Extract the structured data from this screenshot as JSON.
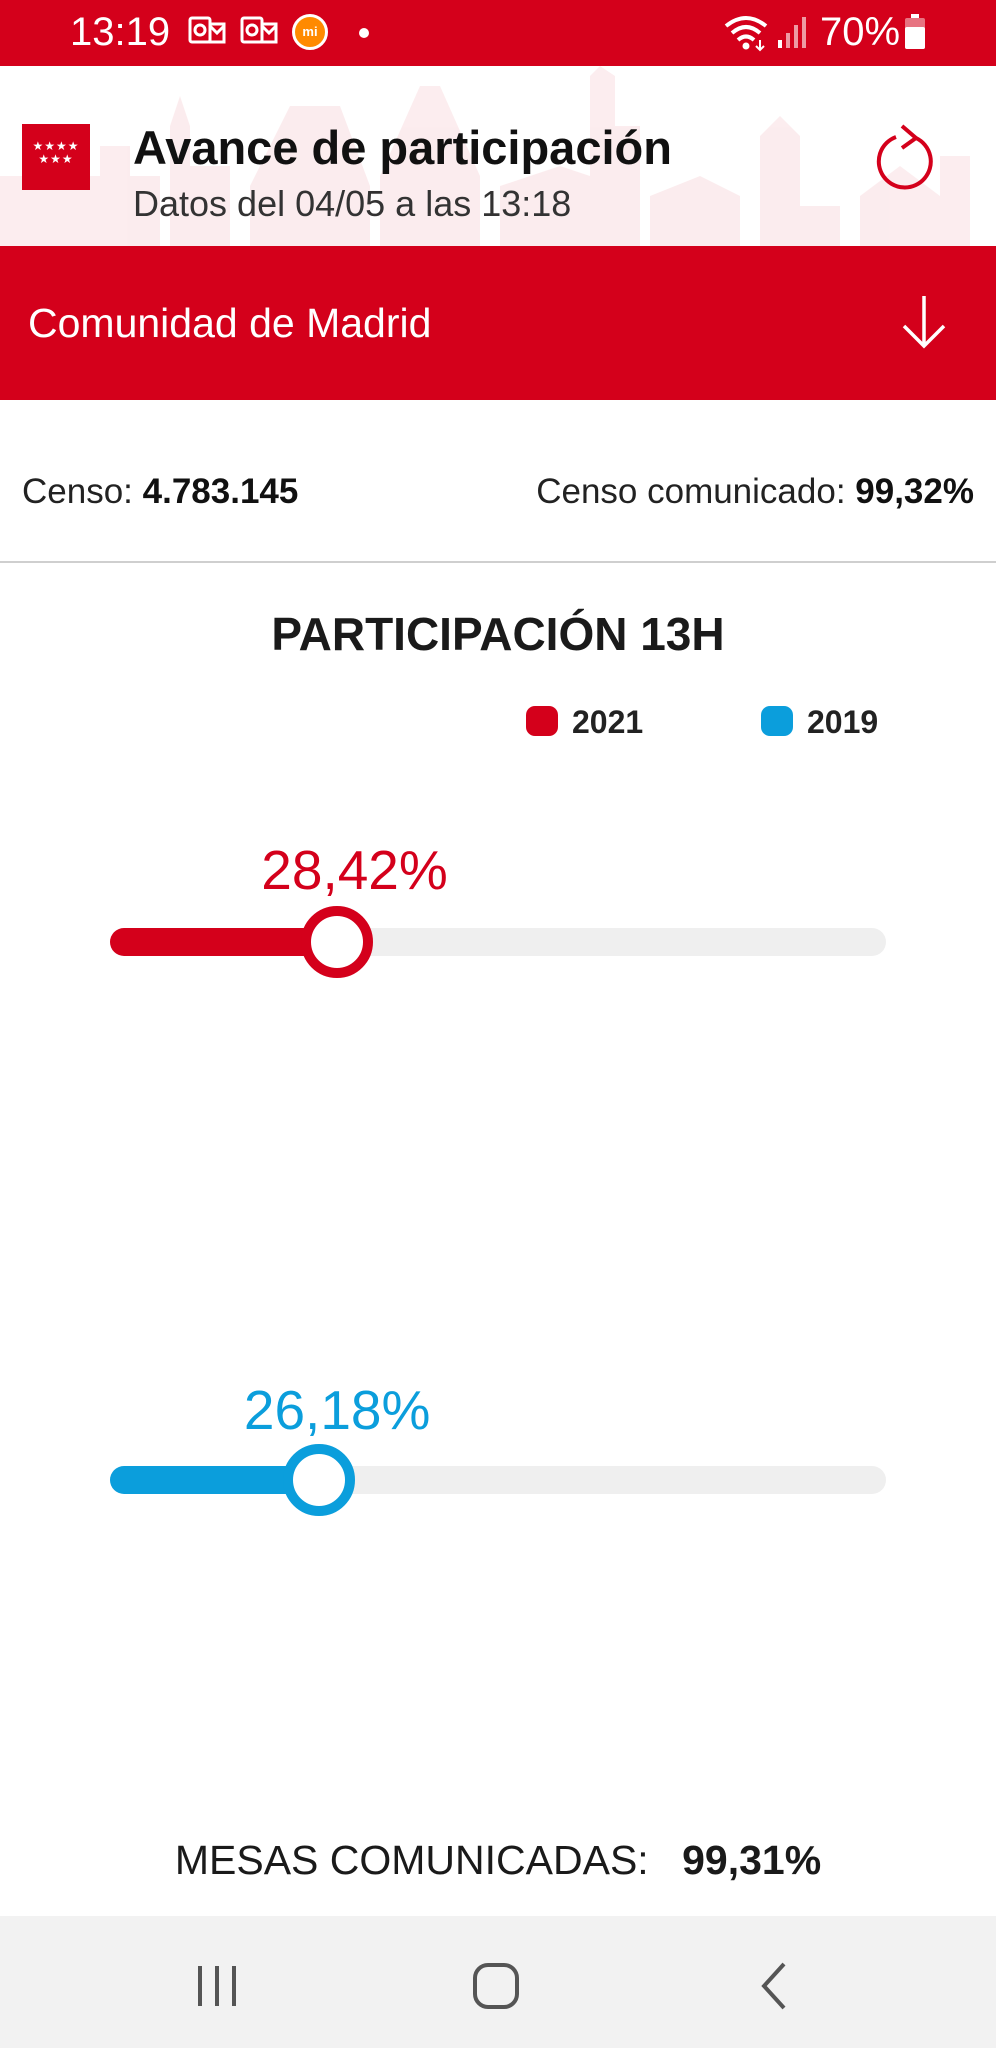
{
  "status_bar": {
    "time": "13:19",
    "battery_text": "70%",
    "icons": [
      "outlook-notification-icon",
      "outlook-notification-icon",
      "mi-app-icon",
      "notification-dot-icon",
      "wifi-icon",
      "signal-icon",
      "battery-icon"
    ]
  },
  "header": {
    "logo_icon": "comunidad-de-madrid-flag-icon",
    "title": "Avance de participación",
    "subtitle": "Datos del 04/05 a las 13:18",
    "refresh_icon": "refresh-icon"
  },
  "region": {
    "label": "Comunidad de Madrid",
    "icon": "arrow-down-icon"
  },
  "census": {
    "label": "Censo:",
    "value": "4.783.145",
    "communicated_label": "Censo comunicado:",
    "communicated_value": "99,32%"
  },
  "participation": {
    "title": "PARTICIPACIÓN 13H",
    "legend": [
      {
        "label": "2021",
        "color": "#d4001b"
      },
      {
        "label": "2019",
        "color": "#0b9edc"
      }
    ],
    "bars": [
      {
        "year": "2021",
        "label": "28,42%",
        "value_percent": 28.42,
        "color": "#d4001b"
      },
      {
        "year": "2019",
        "label": "26,18%",
        "value_percent": 26.18,
        "color": "#0b9edc"
      }
    ]
  },
  "mesas": {
    "label": "MESAS COMUNICADAS:",
    "value": "99,31%"
  },
  "nav": {
    "icons": [
      "recent-apps-icon",
      "home-icon",
      "back-icon"
    ]
  },
  "colors": {
    "brand_red": "#d4001b",
    "blue_2019": "#0b9edc",
    "track_gray": "#efefef",
    "nav_bg": "#f2f2f2"
  }
}
